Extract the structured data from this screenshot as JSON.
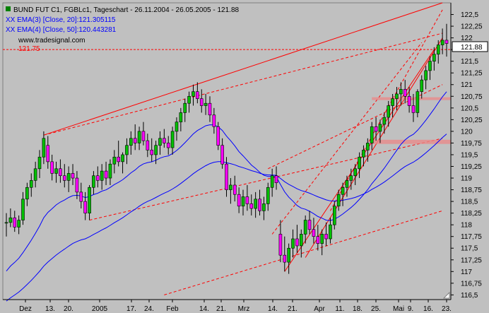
{
  "chart_data": {
    "type": "candlestick",
    "title": "BUND FUT C1, FGBLc1, Tageschart - 26.11.2004 - 26.05.2005 - 121.88",
    "watermark": "www.tradesignal.com",
    "legend": [
      {
        "name": "XX EMA(3) [Close, 20]:121.305115",
        "color": "#0000ff"
      },
      {
        "name": "XX EMA(4) [Close, 50]:120.443281",
        "color": "#0000ff"
      }
    ],
    "hline_label": "121.75",
    "hline_value": 121.75,
    "last_price_label": "121.88",
    "last_price": 121.88,
    "ylim": [
      116.4,
      122.75
    ],
    "y_ticks": [
      "116,5",
      "116,75",
      "117",
      "117,25",
      "117,5",
      "117,75",
      "118",
      "118,25",
      "118,5",
      "118,75",
      "119",
      "119,25",
      "119,5",
      "119,75",
      "120",
      "120,25",
      "120,5",
      "120,75",
      "121",
      "121,25",
      "121,5",
      "121,75",
      "122",
      "122,25",
      "122,5"
    ],
    "x_ticks": [
      "Dez",
      "13.",
      "20.",
      "2005",
      "17.",
      "24.",
      "Feb",
      "14.",
      "21.",
      "Mrz",
      "14.",
      "21.",
      "Apr",
      "11.",
      "18.",
      "25.",
      "Mai",
      "9.",
      "16.",
      "23."
    ],
    "candles": [
      [
        118.05,
        118.25,
        117.75,
        118.05
      ],
      [
        118.05,
        118.35,
        117.95,
        118.15
      ],
      [
        118.15,
        118.3,
        117.85,
        117.95
      ],
      [
        117.95,
        118.2,
        117.8,
        118.1
      ],
      [
        118.1,
        118.7,
        118.0,
        118.55
      ],
      [
        118.55,
        118.9,
        118.4,
        118.8
      ],
      [
        118.8,
        119.1,
        118.6,
        118.95
      ],
      [
        118.95,
        119.35,
        118.8,
        119.2
      ],
      [
        119.2,
        119.6,
        119.0,
        119.45
      ],
      [
        119.45,
        120.0,
        119.3,
        119.85
      ],
      [
        119.7,
        119.9,
        119.2,
        119.35
      ],
      [
        119.35,
        119.5,
        118.95,
        119.1
      ],
      [
        119.1,
        119.35,
        118.9,
        119.2
      ],
      [
        119.2,
        119.4,
        118.9,
        119.05
      ],
      [
        119.05,
        119.3,
        118.8,
        118.95
      ],
      [
        118.95,
        119.25,
        118.7,
        119.1
      ],
      [
        119.1,
        119.3,
        118.85,
        119.0
      ],
      [
        119.0,
        119.15,
        118.55,
        118.7
      ],
      [
        118.7,
        118.9,
        118.35,
        118.5
      ],
      [
        118.5,
        118.7,
        118.1,
        118.25
      ],
      [
        118.25,
        118.85,
        118.1,
        118.8
      ],
      [
        118.8,
        119.15,
        118.65,
        119.05
      ],
      [
        119.05,
        119.25,
        118.8,
        118.95
      ],
      [
        118.95,
        119.3,
        118.75,
        119.15
      ],
      [
        119.15,
        119.35,
        118.85,
        119.0
      ],
      [
        119.0,
        119.4,
        118.85,
        119.3
      ],
      [
        119.3,
        119.6,
        119.1,
        119.45
      ],
      [
        119.45,
        119.8,
        119.25,
        119.35
      ],
      [
        119.35,
        119.55,
        119.1,
        119.5
      ],
      [
        119.5,
        119.85,
        119.3,
        119.7
      ],
      [
        119.7,
        120.0,
        119.5,
        119.85
      ],
      [
        119.85,
        120.15,
        119.6,
        119.75
      ],
      [
        119.75,
        120.1,
        119.6,
        120.0
      ],
      [
        120.0,
        120.2,
        119.7,
        119.8
      ],
      [
        119.8,
        119.95,
        119.45,
        119.6
      ],
      [
        119.6,
        119.85,
        119.35,
        119.5
      ],
      [
        119.5,
        119.8,
        119.3,
        119.7
      ],
      [
        119.7,
        120.0,
        119.5,
        119.85
      ],
      [
        119.85,
        120.05,
        119.65,
        119.75
      ],
      [
        119.75,
        119.9,
        119.5,
        119.65
      ],
      [
        119.65,
        120.1,
        119.5,
        120.0
      ],
      [
        120.0,
        120.3,
        119.8,
        120.2
      ],
      [
        120.2,
        120.5,
        120.0,
        120.4
      ],
      [
        120.4,
        120.7,
        120.2,
        120.6
      ],
      [
        120.6,
        120.85,
        120.4,
        120.75
      ],
      [
        120.75,
        121.0,
        120.55,
        120.85
      ],
      [
        120.85,
        121.05,
        120.6,
        120.7
      ],
      [
        120.7,
        120.9,
        120.4,
        120.55
      ],
      [
        120.55,
        120.8,
        120.35,
        120.6
      ],
      [
        120.6,
        120.75,
        120.2,
        120.35
      ],
      [
        120.35,
        120.5,
        119.95,
        120.1
      ],
      [
        120.1,
        120.2,
        119.6,
        119.7
      ],
      [
        119.7,
        119.85,
        119.2,
        119.3
      ],
      [
        119.3,
        119.45,
        118.6,
        118.75
      ],
      [
        118.75,
        119.0,
        118.45,
        118.85
      ],
      [
        118.85,
        119.05,
        118.5,
        118.65
      ],
      [
        118.65,
        118.8,
        118.25,
        118.4
      ],
      [
        118.4,
        118.75,
        118.2,
        118.6
      ],
      [
        118.6,
        118.85,
        118.3,
        118.45
      ],
      [
        118.45,
        118.65,
        118.2,
        118.35
      ],
      [
        118.35,
        118.7,
        118.15,
        118.55
      ],
      [
        118.55,
        118.75,
        118.2,
        118.3
      ],
      [
        118.3,
        118.6,
        118.1,
        118.45
      ],
      [
        118.45,
        118.9,
        118.3,
        118.8
      ],
      [
        118.8,
        119.2,
        118.6,
        119.05
      ],
      [
        119.05,
        119.25,
        118.75,
        118.9
      ],
      [
        117.8,
        118.1,
        117.2,
        117.35
      ],
      [
        117.35,
        117.75,
        117.0,
        117.2
      ],
      [
        117.2,
        117.6,
        116.95,
        117.5
      ],
      [
        117.5,
        117.9,
        117.3,
        117.7
      ],
      [
        117.7,
        118.0,
        117.4,
        117.55
      ],
      [
        117.55,
        117.9,
        117.3,
        117.8
      ],
      [
        117.8,
        118.2,
        117.6,
        118.1
      ],
      [
        118.1,
        118.3,
        117.8,
        117.9
      ],
      [
        117.9,
        118.15,
        117.6,
        117.75
      ],
      [
        117.75,
        118.0,
        117.45,
        117.6
      ],
      [
        117.6,
        117.9,
        117.35,
        117.8
      ],
      [
        117.8,
        118.05,
        117.55,
        117.7
      ],
      [
        117.7,
        118.15,
        117.6,
        118.0
      ],
      [
        118.0,
        118.5,
        117.9,
        118.4
      ],
      [
        118.4,
        118.75,
        118.3,
        118.65
      ],
      [
        118.65,
        118.9,
        118.4,
        118.8
      ],
      [
        118.8,
        119.05,
        118.6,
        118.95
      ],
      [
        118.95,
        119.2,
        118.75,
        119.05
      ],
      [
        119.05,
        119.3,
        118.85,
        119.2
      ],
      [
        119.2,
        119.55,
        119.0,
        119.45
      ],
      [
        119.45,
        119.7,
        119.25,
        119.6
      ],
      [
        119.6,
        119.85,
        119.35,
        119.75
      ],
      [
        119.75,
        120.2,
        119.6,
        120.1
      ],
      [
        120.1,
        120.3,
        119.8,
        120.0
      ],
      [
        120.0,
        120.25,
        119.75,
        120.15
      ],
      [
        120.15,
        120.4,
        119.95,
        120.3
      ],
      [
        120.3,
        120.65,
        120.1,
        120.55
      ],
      [
        120.55,
        120.8,
        120.3,
        120.7
      ],
      [
        120.7,
        120.95,
        120.45,
        120.8
      ],
      [
        120.8,
        121.05,
        120.55,
        120.9
      ],
      [
        120.9,
        121.1,
        120.6,
        120.75
      ],
      [
        120.75,
        120.95,
        120.4,
        120.55
      ],
      [
        120.55,
        120.8,
        120.2,
        120.4
      ],
      [
        120.4,
        120.9,
        120.3,
        120.85
      ],
      [
        120.85,
        121.2,
        120.7,
        121.1
      ],
      [
        121.1,
        121.4,
        120.9,
        121.3
      ],
      [
        121.3,
        121.6,
        121.1,
        121.5
      ],
      [
        121.5,
        121.8,
        121.3,
        121.65
      ],
      [
        121.65,
        121.95,
        121.45,
        121.85
      ],
      [
        121.85,
        122.2,
        121.65,
        121.95
      ],
      [
        121.95,
        122.3,
        121.6,
        121.88
      ]
    ]
  }
}
